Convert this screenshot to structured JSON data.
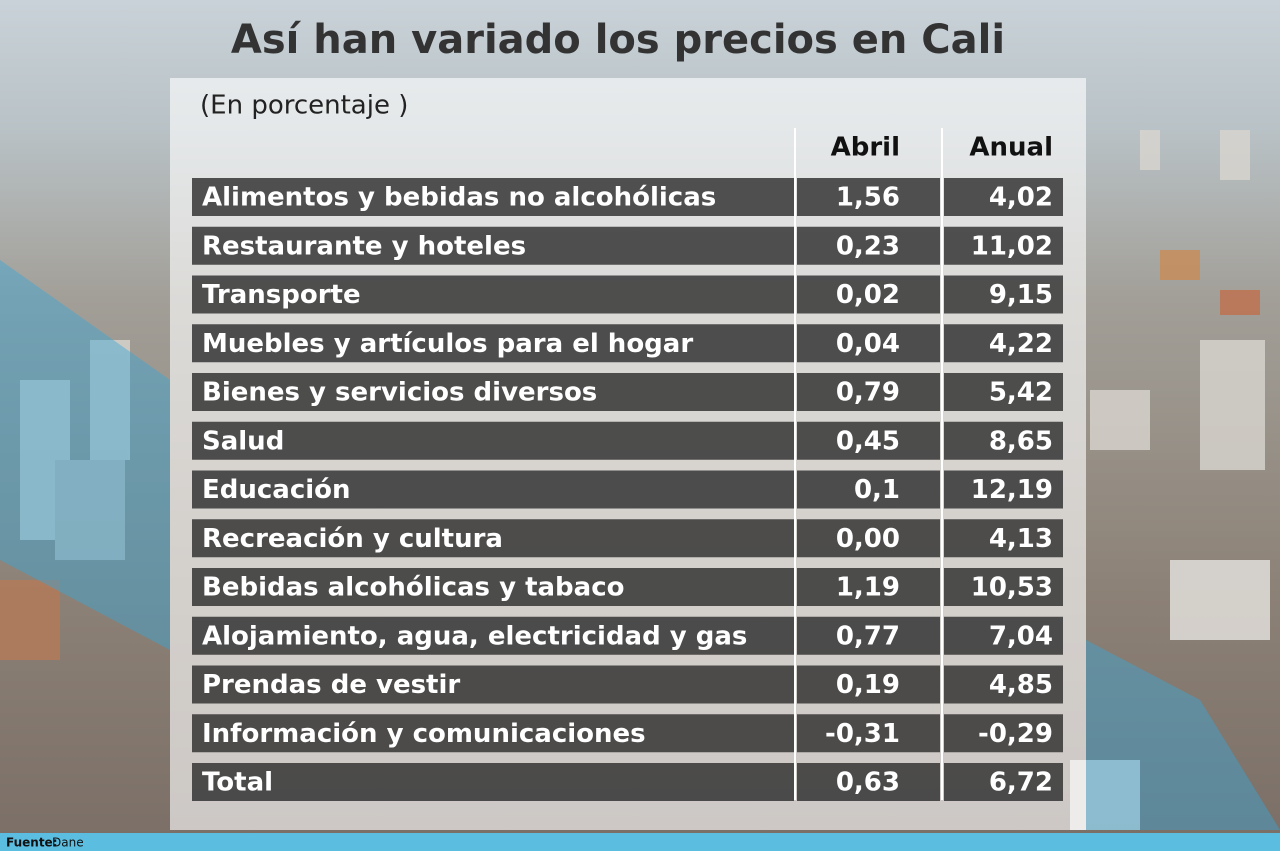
{
  "header": {
    "title": "Así han variado los precios en Cali",
    "subtitle": "(En porcentaje )"
  },
  "table": {
    "columns": [
      "Abril",
      "Anual"
    ],
    "rows": [
      [
        "Alimentos y bebidas no alcohólicas",
        "1,56",
        "4,02"
      ],
      [
        "Restaurante y hoteles",
        "0,23",
        "11,02"
      ],
      [
        "Transporte",
        "0,02",
        "9,15"
      ],
      [
        "Muebles y artículos para el hogar",
        "0,04",
        "4,22"
      ],
      [
        "Bienes y servicios diversos",
        "0,79",
        "5,42"
      ],
      [
        "Salud",
        "0,45",
        "8,65"
      ],
      [
        "Educación",
        "0,1",
        "12,19"
      ],
      [
        "Recreación y cultura",
        "0,00",
        "4,13"
      ],
      [
        "Bebidas alcohólicas y tabaco",
        "1,19",
        "10,53"
      ],
      [
        "Alojamiento, agua, electricidad y gas",
        "0,77",
        "7,04"
      ],
      [
        "Prendas de vestir",
        "0,19",
        "4,85"
      ],
      [
        "Información y comunicaciones",
        "-0,31",
        "-0,29"
      ],
      [
        "Total",
        "0,63",
        "6,72"
      ]
    ]
  },
  "footer": {
    "label": "Fuente:",
    "source": "Dane"
  }
}
